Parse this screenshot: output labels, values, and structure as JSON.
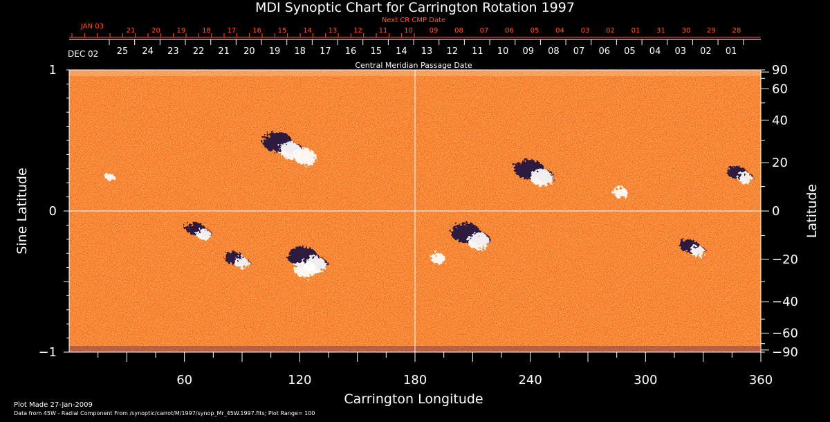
{
  "title": "MDI Synoptic Chart for Carrington Rotation 1997",
  "colors": {
    "background": "#000000",
    "axis": "#ffffff",
    "next_cr_axis": "#ff5a1e",
    "map_base": "#ff5a14",
    "neg_polarity": "#1a1040",
    "pos_polarity": "#ffffff"
  },
  "chart_data": {
    "type": "heatmap",
    "description": "MDI synoptic magnetogram (radial component), Carrington Rotation 1997",
    "title": "MDI Synoptic Chart for Carrington Rotation 1997",
    "xlabel": "Carrington Longitude",
    "ylabel_left": "Sine Latitude",
    "ylabel_right": "Latitude",
    "xlim": [
      0,
      360
    ],
    "ylim_sine": [
      -1,
      1
    ],
    "x_ticks": [
      60,
      120,
      180,
      240,
      300,
      360
    ],
    "y_ticks_left": [
      {
        "value": 1,
        "label": "1"
      },
      {
        "value": 0,
        "label": "0"
      },
      {
        "value": -1,
        "label": "−1"
      }
    ],
    "y_ticks_right": [
      {
        "deg": 90,
        "label": "90"
      },
      {
        "deg": 60,
        "label": "60"
      },
      {
        "deg": 40,
        "label": "40"
      },
      {
        "deg": 20,
        "label": "20"
      },
      {
        "deg": 0,
        "label": "0"
      },
      {
        "deg": -20,
        "label": "−20"
      },
      {
        "deg": -40,
        "label": "−40"
      },
      {
        "deg": -60,
        "label": "−60"
      },
      {
        "deg": -90,
        "label": "−90"
      }
    ],
    "cmp_axis": {
      "label": "Central Meridian Passage Date",
      "start_label": "DEC 02",
      "dates": [
        "25",
        "24",
        "23",
        "22",
        "21",
        "20",
        "19",
        "18",
        "17",
        "16",
        "15",
        "14",
        "13",
        "12",
        "11",
        "10",
        "09",
        "08",
        "07",
        "06",
        "05",
        "04",
        "03",
        "02",
        "01"
      ]
    },
    "next_cr_axis": {
      "label": "Next CR CMP Date",
      "start_label": "JAN 03",
      "dates": [
        "21",
        "20",
        "19",
        "18",
        "17",
        "16",
        "15",
        "14",
        "13",
        "12",
        "11",
        "10",
        "09",
        "08",
        "07",
        "06",
        "05",
        "04",
        "03",
        "02",
        "01",
        "31",
        "30",
        "29",
        "28"
      ]
    },
    "active_regions": [
      {
        "lon": 112,
        "lat": 28,
        "polarity": "mixed",
        "strength": "strong"
      },
      {
        "lon": 120,
        "lat": 25,
        "polarity": "positive",
        "strength": "strong"
      },
      {
        "lon": 125,
        "lat": -20,
        "polarity": "mixed",
        "strength": "strong"
      },
      {
        "lon": 120,
        "lat": -22,
        "polarity": "positive",
        "strength": "strong"
      },
      {
        "lon": 68,
        "lat": -8,
        "polarity": "mixed",
        "strength": "moderate"
      },
      {
        "lon": 88,
        "lat": -20,
        "polarity": "mixed",
        "strength": "moderate"
      },
      {
        "lon": 210,
        "lat": -10,
        "polarity": "mixed",
        "strength": "strong"
      },
      {
        "lon": 190,
        "lat": -18,
        "polarity": "positive",
        "strength": "moderate"
      },
      {
        "lon": 243,
        "lat": 16,
        "polarity": "mixed",
        "strength": "strong"
      },
      {
        "lon": 285,
        "lat": 9,
        "polarity": "positive",
        "strength": "moderate"
      },
      {
        "lon": 325,
        "lat": -15,
        "polarity": "mixed",
        "strength": "moderate"
      },
      {
        "lon": 350,
        "lat": 15,
        "polarity": "mixed",
        "strength": "moderate"
      },
      {
        "lon": 20,
        "lat": 15,
        "polarity": "positive",
        "strength": "weak"
      }
    ]
  },
  "footer": {
    "plot_made": "Plot Made 27-Jan-2009",
    "source": "Data from 45W - Radial Component From /synoptic/carrot/M/1997/synop_Mr_45W.1997.fits; Plot Range= 100"
  }
}
